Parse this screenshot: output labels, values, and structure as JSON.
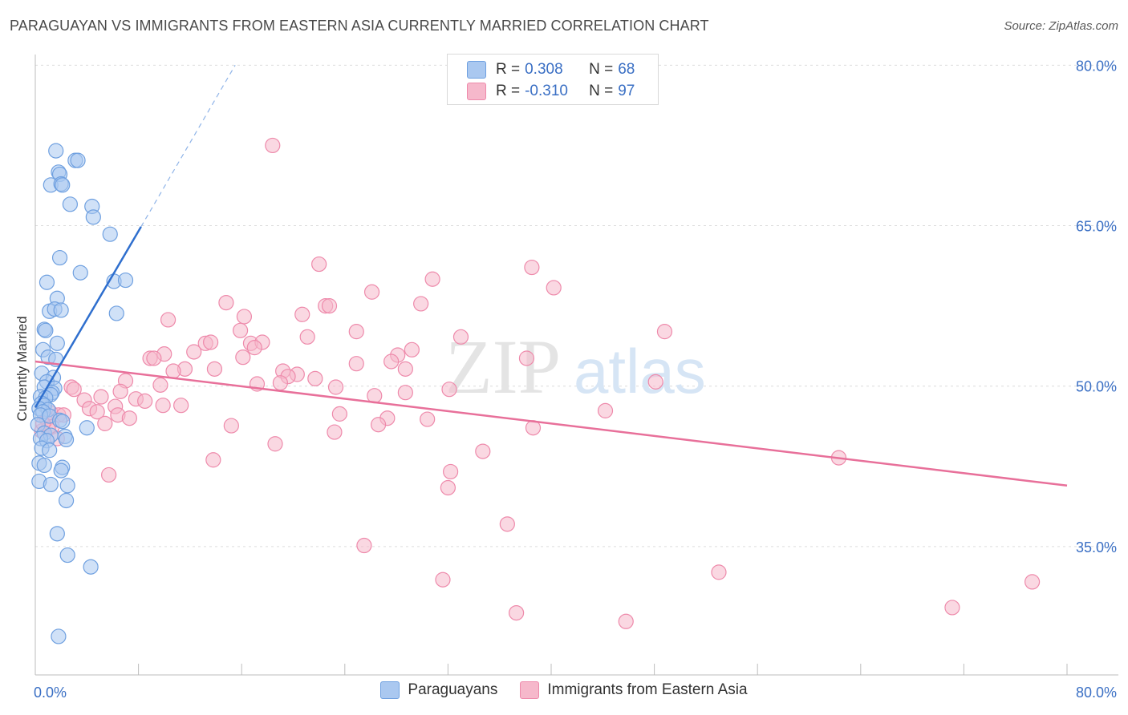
{
  "header": {
    "title": "PARAGUAYAN VS IMMIGRANTS FROM EASTERN ASIA CURRENTLY MARRIED CORRELATION CHART",
    "source": "Source: ZipAtlas.com"
  },
  "watermark": {
    "zip": "ZIP",
    "atlas": "atlas"
  },
  "legend": {
    "rows": [
      {
        "r_label": "R =",
        "r_value": "0.308",
        "n_label": "N =",
        "n_value": "68",
        "color": "#aac8f0"
      },
      {
        "r_label": "R =",
        "r_value": "-0.310",
        "n_label": "N =",
        "n_value": "97",
        "color": "#f6b8cb"
      }
    ]
  },
  "bottom_legend": {
    "items": [
      {
        "label": "Paraguayans",
        "color": "#aac8f0"
      },
      {
        "label": "Immigrants from Eastern Asia",
        "color": "#f6b8cb"
      }
    ]
  },
  "chart_data": {
    "type": "scatter",
    "title": "PARAGUAYAN VS IMMIGRANTS FROM EASTERN ASIA CURRENTLY MARRIED CORRELATION CHART",
    "xlabel": "",
    "ylabel": "Currently Married",
    "xlim": [
      0,
      80
    ],
    "ylim": [
      23,
      81
    ],
    "x_tick_labels": [
      "0.0%",
      "80.0%"
    ],
    "y_ticks": [
      35,
      50,
      65,
      80
    ],
    "y_tick_labels": [
      "35.0%",
      "50.0%",
      "65.0%",
      "80.0%"
    ],
    "grid": true,
    "legend_position": "top-center",
    "series": [
      {
        "name": "Paraguayans",
        "color": "#6fa0e0",
        "fill": "#aac8f0",
        "points": [
          [
            1.6,
            72.0
          ],
          [
            3.1,
            71.1
          ],
          [
            3.3,
            71.1
          ],
          [
            1.8,
            70.0
          ],
          [
            1.9,
            69.8
          ],
          [
            1.2,
            68.8
          ],
          [
            2.0,
            68.9
          ],
          [
            2.1,
            68.8
          ],
          [
            2.7,
            67.0
          ],
          [
            4.4,
            66.8
          ],
          [
            4.5,
            65.8
          ],
          [
            5.8,
            64.2
          ],
          [
            1.9,
            62.0
          ],
          [
            3.5,
            60.6
          ],
          [
            0.9,
            59.7
          ],
          [
            6.1,
            59.8
          ],
          [
            7.0,
            59.9
          ],
          [
            1.7,
            58.2
          ],
          [
            1.1,
            57.0
          ],
          [
            1.5,
            57.2
          ],
          [
            2.0,
            57.1
          ],
          [
            6.3,
            56.8
          ],
          [
            0.7,
            55.3
          ],
          [
            0.8,
            55.2
          ],
          [
            1.7,
            54.0
          ],
          [
            0.6,
            53.4
          ],
          [
            1.0,
            52.7
          ],
          [
            1.6,
            52.5
          ],
          [
            0.5,
            51.2
          ],
          [
            1.4,
            50.8
          ],
          [
            0.9,
            50.4
          ],
          [
            0.7,
            49.9
          ],
          [
            1.5,
            49.8
          ],
          [
            1.3,
            49.4
          ],
          [
            1.2,
            49.2
          ],
          [
            0.4,
            49.0
          ],
          [
            0.8,
            48.9
          ],
          [
            0.5,
            48.4
          ],
          [
            0.7,
            48.2
          ],
          [
            0.3,
            47.9
          ],
          [
            1.0,
            47.8
          ],
          [
            0.6,
            47.6
          ],
          [
            0.4,
            47.3
          ],
          [
            1.1,
            47.2
          ],
          [
            1.9,
            46.8
          ],
          [
            0.2,
            46.4
          ],
          [
            2.1,
            46.7
          ],
          [
            4.0,
            46.1
          ],
          [
            0.7,
            45.6
          ],
          [
            1.2,
            45.4
          ],
          [
            0.4,
            45.1
          ],
          [
            0.9,
            44.9
          ],
          [
            2.3,
            45.3
          ],
          [
            2.4,
            45.0
          ],
          [
            0.5,
            44.2
          ],
          [
            1.1,
            44.0
          ],
          [
            0.3,
            42.8
          ],
          [
            0.7,
            42.6
          ],
          [
            2.1,
            42.4
          ],
          [
            2.0,
            42.1
          ],
          [
            0.3,
            41.1
          ],
          [
            1.2,
            40.8
          ],
          [
            2.5,
            40.7
          ],
          [
            2.4,
            39.3
          ],
          [
            1.7,
            36.2
          ],
          [
            2.5,
            34.2
          ],
          [
            4.3,
            33.1
          ],
          [
            1.8,
            26.6
          ]
        ],
        "trend_solid": [
          [
            0,
            48.0
          ],
          [
            8.2,
            64.9
          ]
        ],
        "trend_dashed": [
          [
            8.2,
            64.9
          ],
          [
            15.5,
            80.0
          ]
        ]
      },
      {
        "name": "Immigrants from Eastern Asia",
        "color": "#ee8aab",
        "fill": "#f6b8cb",
        "points": [
          [
            18.4,
            72.5
          ],
          [
            22.0,
            61.4
          ],
          [
            38.5,
            61.1
          ],
          [
            30.8,
            60.0
          ],
          [
            40.2,
            59.2
          ],
          [
            26.1,
            58.8
          ],
          [
            29.9,
            57.7
          ],
          [
            14.8,
            57.8
          ],
          [
            22.5,
            57.5
          ],
          [
            22.8,
            57.5
          ],
          [
            20.7,
            56.7
          ],
          [
            16.2,
            56.5
          ],
          [
            10.3,
            56.2
          ],
          [
            15.9,
            55.2
          ],
          [
            24.9,
            55.1
          ],
          [
            48.8,
            55.1
          ],
          [
            21.1,
            54.6
          ],
          [
            33.0,
            54.6
          ],
          [
            13.2,
            54.0
          ],
          [
            13.6,
            54.1
          ],
          [
            16.7,
            54.0
          ],
          [
            17.6,
            54.1
          ],
          [
            17.0,
            53.6
          ],
          [
            29.2,
            53.4
          ],
          [
            12.3,
            53.2
          ],
          [
            10.0,
            53.0
          ],
          [
            28.1,
            52.9
          ],
          [
            8.9,
            52.6
          ],
          [
            9.2,
            52.6
          ],
          [
            16.1,
            52.7
          ],
          [
            27.6,
            52.3
          ],
          [
            24.9,
            52.1
          ],
          [
            38.1,
            52.6
          ],
          [
            11.6,
            51.6
          ],
          [
            13.9,
            51.6
          ],
          [
            28.7,
            51.6
          ],
          [
            10.7,
            51.4
          ],
          [
            19.2,
            51.4
          ],
          [
            20.3,
            51.1
          ],
          [
            19.6,
            50.9
          ],
          [
            21.7,
            50.7
          ],
          [
            7.0,
            50.5
          ],
          [
            17.2,
            50.2
          ],
          [
            19.0,
            50.3
          ],
          [
            48.1,
            50.4
          ],
          [
            9.7,
            50.1
          ],
          [
            2.8,
            49.9
          ],
          [
            3.0,
            49.7
          ],
          [
            23.3,
            49.9
          ],
          [
            32.1,
            49.7
          ],
          [
            6.6,
            49.5
          ],
          [
            26.3,
            49.1
          ],
          [
            28.7,
            49.4
          ],
          [
            5.1,
            49.0
          ],
          [
            7.8,
            48.8
          ],
          [
            3.8,
            48.7
          ],
          [
            8.5,
            48.6
          ],
          [
            6.2,
            48.1
          ],
          [
            11.3,
            48.2
          ],
          [
            4.2,
            47.9
          ],
          [
            9.9,
            48.2
          ],
          [
            4.8,
            47.6
          ],
          [
            1.2,
            47.5
          ],
          [
            1.8,
            47.3
          ],
          [
            6.4,
            47.3
          ],
          [
            7.3,
            47.0
          ],
          [
            2.2,
            47.3
          ],
          [
            0.9,
            46.9
          ],
          [
            23.6,
            47.4
          ],
          [
            27.3,
            47.0
          ],
          [
            44.2,
            47.7
          ],
          [
            1.3,
            46.2
          ],
          [
            5.4,
            46.5
          ],
          [
            15.2,
            46.3
          ],
          [
            30.4,
            46.9
          ],
          [
            26.6,
            46.4
          ],
          [
            0.5,
            45.8
          ],
          [
            1.0,
            46.0
          ],
          [
            23.2,
            45.7
          ],
          [
            38.6,
            46.1
          ],
          [
            18.6,
            44.6
          ],
          [
            1.7,
            45.1
          ],
          [
            34.7,
            43.9
          ],
          [
            13.8,
            43.1
          ],
          [
            62.3,
            43.3
          ],
          [
            32.2,
            42.0
          ],
          [
            5.7,
            41.7
          ],
          [
            32.0,
            40.5
          ],
          [
            36.6,
            37.1
          ],
          [
            25.5,
            35.1
          ],
          [
            31.6,
            31.9
          ],
          [
            53.0,
            32.6
          ],
          [
            77.3,
            31.7
          ],
          [
            37.3,
            28.8
          ],
          [
            71.1,
            29.3
          ],
          [
            45.8,
            28.0
          ],
          [
            0.6,
            46.5
          ]
        ],
        "trend_solid": [
          [
            0,
            52.3
          ],
          [
            80,
            40.7
          ]
        ]
      }
    ]
  }
}
